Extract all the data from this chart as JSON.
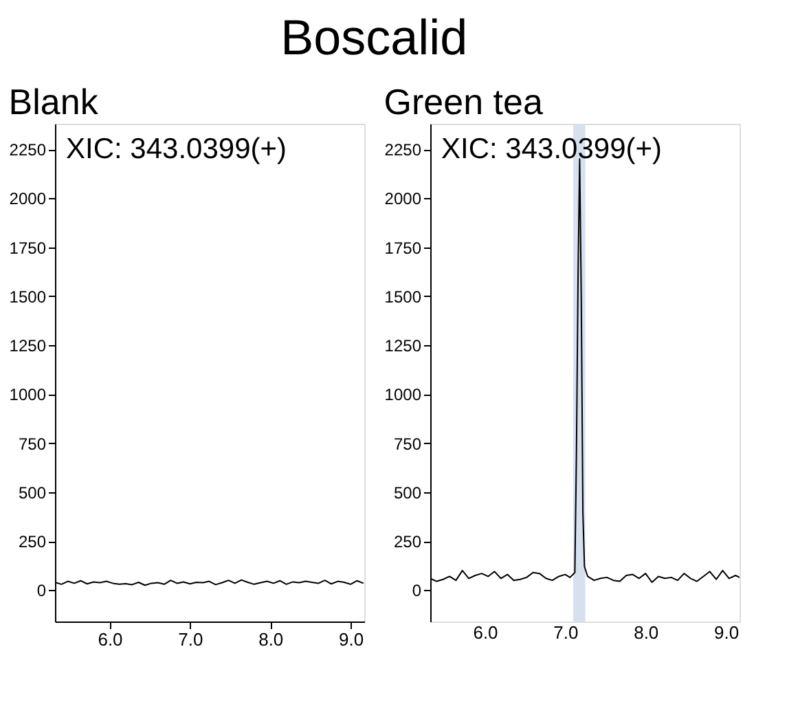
{
  "chart_data": [
    {
      "type": "line",
      "title": "Blank",
      "annotations": [
        "Boscalid",
        "XIC: 343.0399(+)"
      ],
      "xlim": [
        5.32,
        9.17
      ],
      "ylim": [
        -160,
        2380
      ],
      "xticks": [
        {
          "value": 6,
          "label": "6.0"
        },
        {
          "value": 7,
          "label": "7.0"
        },
        {
          "value": 8,
          "label": "8.0"
        },
        {
          "value": 9,
          "label": "9.0"
        }
      ],
      "yticks": [
        0,
        250,
        500,
        750,
        1000,
        1250,
        1500,
        1750,
        2000,
        2250
      ],
      "grid": false,
      "marker": "none",
      "line_style": "solid",
      "series": [
        {
          "color": "#000000",
          "x": [
            5.32,
            5.4,
            5.48,
            5.56,
            5.64,
            5.72,
            5.8,
            5.88,
            5.96,
            6.04,
            6.12,
            6.2,
            6.28,
            6.36,
            6.44,
            6.52,
            6.6,
            6.68,
            6.76,
            6.84,
            6.92,
            7.0,
            7.08,
            7.16,
            7.24,
            7.32,
            7.4,
            7.48,
            7.56,
            7.64,
            7.72,
            7.8,
            7.88,
            7.96,
            8.04,
            8.12,
            8.2,
            8.28,
            8.36,
            8.44,
            8.52,
            8.6,
            8.68,
            8.76,
            8.84,
            8.92,
            9.0,
            9.08,
            9.16
          ],
          "values": [
            40,
            30,
            45,
            35,
            48,
            32,
            42,
            38,
            45,
            35,
            30,
            33,
            28,
            40,
            25,
            35,
            38,
            30,
            50,
            35,
            42,
            32,
            40,
            38,
            45,
            28,
            38,
            50,
            35,
            52,
            40,
            30,
            38,
            45,
            35,
            48,
            30,
            42,
            38,
            45,
            40,
            35,
            50,
            32,
            45,
            40,
            30,
            48,
            35
          ]
        }
      ]
    },
    {
      "type": "line",
      "title": "Green tea",
      "annotations": [
        "XIC: 343.0399(+)"
      ],
      "xlim": [
        5.32,
        9.17
      ],
      "ylim": [
        -160,
        2380
      ],
      "xticks": [
        {
          "value": 6,
          "label": "6.0"
        },
        {
          "value": 7,
          "label": "7.0"
        },
        {
          "value": 8,
          "label": "8.0"
        },
        {
          "value": 9,
          "label": "9.0"
        }
      ],
      "yticks": [
        0,
        250,
        500,
        750,
        1000,
        1250,
        1500,
        1750,
        2000,
        2250
      ],
      "grid": false,
      "marker": "none",
      "line_style": "solid",
      "bands": [
        {
          "axis": "x",
          "from": 7.1,
          "to": 7.25,
          "color": "#d6e0ee"
        }
      ],
      "series": [
        {
          "color": "#000000",
          "x": [
            5.32,
            5.4,
            5.48,
            5.56,
            5.64,
            5.72,
            5.8,
            5.88,
            5.96,
            6.04,
            6.12,
            6.2,
            6.28,
            6.36,
            6.44,
            6.52,
            6.6,
            6.68,
            6.76,
            6.84,
            6.92,
            7.0,
            7.06,
            7.12,
            7.14,
            7.16,
            7.18,
            7.2,
            7.22,
            7.24,
            7.28,
            7.36,
            7.44,
            7.52,
            7.6,
            7.68,
            7.76,
            7.84,
            7.92,
            8.0,
            8.08,
            8.16,
            8.24,
            8.32,
            8.4,
            8.48,
            8.56,
            8.64,
            8.72,
            8.8,
            8.88,
            8.96,
            9.04,
            9.12,
            9.17
          ],
          "values": [
            60,
            45,
            55,
            70,
            50,
            100,
            60,
            75,
            85,
            70,
            95,
            60,
            80,
            50,
            55,
            65,
            90,
            85,
            60,
            50,
            70,
            80,
            65,
            90,
            700,
            1600,
            2200,
            1500,
            400,
            120,
            70,
            50,
            60,
            65,
            50,
            45,
            75,
            80,
            60,
            85,
            40,
            70,
            60,
            65,
            50,
            85,
            60,
            45,
            70,
            95,
            55,
            100,
            60,
            75,
            65
          ]
        }
      ]
    }
  ]
}
